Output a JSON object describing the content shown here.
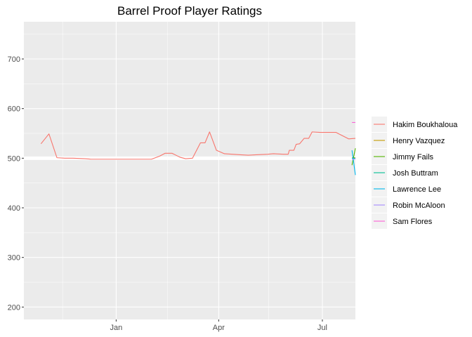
{
  "chart_data": {
    "type": "line",
    "title": "Barrel Proof Player Ratings",
    "xlabel": "",
    "ylabel": "",
    "x_axis": {
      "type": "date",
      "range": [
        "2017-10-12",
        "2018-07-30"
      ],
      "ticks": [
        {
          "date": "2018-01-01",
          "label": "Jan"
        },
        {
          "date": "2018-04-01",
          "label": "Apr"
        },
        {
          "date": "2018-07-01",
          "label": "Jul"
        }
      ],
      "minor_ticks": [
        "2017-11-15",
        "2018-02-15",
        "2018-05-15"
      ]
    },
    "y_axis": {
      "range": [
        175,
        775
      ],
      "ticks": [
        200,
        300,
        400,
        500,
        600,
        700
      ],
      "minor_ticks": [
        250,
        350,
        450,
        550,
        650,
        750
      ]
    },
    "highlight_line_y": 500,
    "grid": true,
    "legend_position": "right",
    "background": "#ebebeb",
    "series": [
      {
        "name": "Hakim Boukhaloua",
        "color": "#F8766D",
        "points": [
          [
            "2017-10-27",
            529
          ],
          [
            "2017-11-03",
            549
          ],
          [
            "2017-11-10",
            501
          ],
          [
            "2017-11-17",
            500
          ],
          [
            "2017-11-24",
            500
          ],
          [
            "2017-12-05",
            499
          ],
          [
            "2017-12-10",
            498
          ],
          [
            "2017-12-20",
            498
          ],
          [
            "2018-01-10",
            498
          ],
          [
            "2018-02-01",
            498
          ],
          [
            "2018-02-08",
            504
          ],
          [
            "2018-02-13",
            510
          ],
          [
            "2018-02-19",
            510
          ],
          [
            "2018-02-26",
            502
          ],
          [
            "2018-03-03",
            499
          ],
          [
            "2018-03-09",
            500
          ],
          [
            "2018-03-16",
            531
          ],
          [
            "2018-03-20",
            531
          ],
          [
            "2018-03-24",
            553
          ],
          [
            "2018-03-30",
            516
          ],
          [
            "2018-04-06",
            509
          ],
          [
            "2018-04-13",
            508
          ],
          [
            "2018-04-20",
            507
          ],
          [
            "2018-04-27",
            506
          ],
          [
            "2018-05-04",
            507
          ],
          [
            "2018-05-14",
            508
          ],
          [
            "2018-05-19",
            509
          ],
          [
            "2018-05-28",
            508
          ],
          [
            "2018-06-01",
            508
          ],
          [
            "2018-06-02",
            516
          ],
          [
            "2018-06-06",
            516
          ],
          [
            "2018-06-08",
            528
          ],
          [
            "2018-06-11",
            529
          ],
          [
            "2018-06-15",
            540
          ],
          [
            "2018-06-19",
            540
          ],
          [
            "2018-06-22",
            553
          ],
          [
            "2018-06-29",
            552
          ],
          [
            "2018-07-13",
            552
          ],
          [
            "2018-07-24",
            539
          ],
          [
            "2018-07-30",
            540
          ]
        ]
      },
      {
        "name": "Henry Vazquez",
        "color": "#C49A00",
        "points": [
          [
            "2018-07-27",
            501
          ],
          [
            "2018-07-30",
            501
          ]
        ]
      },
      {
        "name": "Jimmy Fails",
        "color": "#53B400",
        "points": [
          [
            "2018-07-27",
            486
          ],
          [
            "2018-07-30",
            520
          ]
        ]
      },
      {
        "name": "Josh Buttram",
        "color": "#00C094",
        "points": [
          [
            "2018-07-27",
            500
          ],
          [
            "2018-07-30",
            500
          ]
        ]
      },
      {
        "name": "Lawrence Lee",
        "color": "#00B6EB",
        "points": [
          [
            "2018-07-27",
            516
          ],
          [
            "2018-07-30",
            466
          ]
        ]
      },
      {
        "name": "Robin McAloon",
        "color": "#A58AFF",
        "points": [
          [
            "2018-07-27",
            498
          ],
          [
            "2018-07-30",
            498
          ]
        ]
      },
      {
        "name": "Sam Flores",
        "color": "#FB61D7",
        "points": [
          [
            "2018-07-27",
            572
          ],
          [
            "2018-07-30",
            572
          ]
        ]
      }
    ]
  }
}
